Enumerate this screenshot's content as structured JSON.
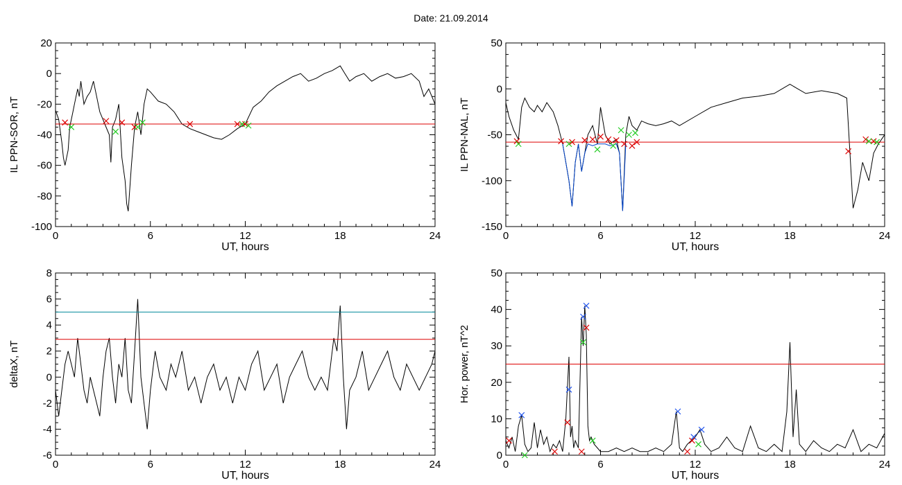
{
  "figure": {
    "title": "Date:  21.09.2014"
  },
  "colors": {
    "signal": "#000000",
    "threshold": "#dd0000",
    "blue_line": "#0044cc",
    "upper_threshold": "#008899",
    "green_marker": "#22cc22",
    "red_marker": "#dd0000",
    "blue_marker": "#2255ee"
  },
  "chart_data": [
    {
      "type": "line",
      "id": "sor",
      "xlabel": "UT, hours",
      "ylabel": "IL PPN-SOR, nT",
      "xlim": [
        0,
        24
      ],
      "ylim": [
        -100,
        20
      ],
      "xticks": [
        0,
        6,
        12,
        18,
        24
      ],
      "yticks": [
        -100,
        -80,
        -60,
        -40,
        -20,
        0,
        20
      ],
      "series": [
        {
          "style": "signal",
          "x": [
            0,
            0.2,
            0.4,
            0.5,
            0.6,
            0.8,
            0.9,
            1.1,
            1.2,
            1.4,
            1.5,
            1.6,
            1.8,
            2.0,
            2.2,
            2.4,
            2.6,
            2.8,
            3.0,
            3.2,
            3.4,
            3.5,
            3.6,
            3.8,
            4.0,
            4.2,
            4.4,
            4.5,
            4.6,
            4.8,
            5.0,
            5.2,
            5.4,
            5.6,
            5.8,
            6.0,
            6.5,
            7.0,
            7.5,
            8.0,
            8.5,
            9.0,
            9.5,
            10.0,
            10.5,
            11.0,
            11.5,
            12.0,
            12.5,
            13.0,
            13.5,
            14.0,
            14.5,
            15.0,
            15.5,
            16.0,
            16.5,
            17.0,
            17.5,
            18.0,
            18.3,
            18.6,
            19.0,
            19.5,
            20.0,
            20.5,
            21.0,
            21.5,
            22.0,
            22.5,
            23.0,
            23.3,
            23.6,
            24.0
          ],
          "y": [
            -24,
            -30,
            -45,
            -55,
            -60,
            -50,
            -35,
            -25,
            -20,
            -10,
            -15,
            -5,
            -20,
            -15,
            -12,
            -5,
            -15,
            -25,
            -30,
            -35,
            -40,
            -58,
            -35,
            -30,
            -20,
            -55,
            -70,
            -85,
            -90,
            -60,
            -35,
            -25,
            -40,
            -20,
            -10,
            -12,
            -18,
            -20,
            -25,
            -33,
            -36,
            -38,
            -40,
            -42,
            -43,
            -40,
            -36,
            -33,
            -22,
            -18,
            -12,
            -8,
            -5,
            -2,
            0,
            -5,
            -3,
            0,
            2,
            5,
            0,
            -5,
            -2,
            0,
            -5,
            -2,
            0,
            -3,
            -2,
            0,
            -5,
            -15,
            -10,
            -20
          ]
        }
      ],
      "thresholds": [
        {
          "value": -33,
          "style": "threshold"
        }
      ],
      "markers": [
        {
          "style": "red_marker",
          "x": [
            0.6,
            3.2,
            4.2,
            5.0,
            8.5,
            11.5,
            12.0
          ],
          "y": [
            -32,
            -31,
            -32,
            -35,
            -33,
            -33,
            -33
          ]
        },
        {
          "style": "green_marker",
          "x": [
            1.0,
            3.8,
            5.2,
            5.5,
            11.8,
            12.2
          ],
          "y": [
            -35,
            -38,
            -35,
            -32,
            -33,
            -34
          ]
        }
      ]
    },
    {
      "type": "line",
      "id": "nal",
      "xlabel": "UT, hours",
      "ylabel": "IL PPN-NAL, nT",
      "xlim": [
        0,
        24
      ],
      "ylim": [
        -150,
        50
      ],
      "xticks": [
        0,
        6,
        12,
        18,
        24
      ],
      "yticks": [
        -150,
        -100,
        -50,
        0,
        50
      ],
      "series": [
        {
          "style": "signal",
          "x": [
            0,
            0.2,
            0.5,
            0.8,
            1.0,
            1.2,
            1.5,
            1.8,
            2.0,
            2.3,
            2.6,
            3.0,
            3.3,
            3.6,
            3.8,
            4.0,
            4.2,
            4.4,
            4.6,
            4.8,
            5.0,
            5.2,
            5.5,
            5.8,
            6.0,
            6.3,
            6.6,
            7.0,
            7.2,
            7.4,
            7.6,
            7.8,
            8.0,
            8.3,
            8.6,
            9.0,
            9.5,
            10.0,
            10.5,
            11.0,
            12.0,
            13.0,
            14.0,
            15.0,
            16.0,
            17.0,
            18.0,
            18.5,
            19.0,
            20.0,
            21.0,
            21.6,
            21.8,
            22.0,
            22.3,
            22.6,
            23.0,
            23.3,
            23.6,
            24.0
          ],
          "y": [
            -15,
            -30,
            -45,
            -55,
            -20,
            -10,
            -20,
            -25,
            -18,
            -25,
            -15,
            -25,
            -40,
            -60,
            -80,
            -100,
            -128,
            -80,
            -60,
            -90,
            -70,
            -50,
            -40,
            -60,
            -20,
            -50,
            -60,
            -55,
            -70,
            -133,
            -50,
            -30,
            -40,
            -45,
            -35,
            -38,
            -40,
            -38,
            -35,
            -40,
            -30,
            -20,
            -15,
            -10,
            -8,
            -5,
            5,
            0,
            -5,
            -2,
            -5,
            -10,
            -70,
            -130,
            -110,
            -80,
            -100,
            -70,
            -60,
            -50
          ]
        },
        {
          "style": "blue_line",
          "x": [
            3.6,
            3.8,
            4.0,
            4.2,
            4.4,
            4.6,
            4.8,
            5.0,
            5.2,
            5.5,
            5.8,
            6.3,
            6.6,
            7.0,
            7.2,
            7.4,
            7.6
          ],
          "y": [
            -60,
            -80,
            -100,
            -128,
            -80,
            -60,
            -90,
            -70,
            -60,
            -62,
            -60,
            -60,
            -62,
            -60,
            -70,
            -133,
            -60
          ]
        }
      ],
      "thresholds": [
        {
          "value": -58,
          "style": "threshold"
        }
      ],
      "markers": [
        {
          "style": "red_marker",
          "x": [
            0.7,
            3.5,
            4.2,
            5.0,
            5.5,
            6.0,
            6.5,
            7.0,
            7.5,
            8.0,
            8.3,
            21.7,
            22.8,
            23.3
          ],
          "y": [
            -57,
            -57,
            -58,
            -56,
            -55,
            -52,
            -55,
            -56,
            -60,
            -62,
            -58,
            -68,
            -55,
            -57
          ]
        },
        {
          "style": "green_marker",
          "x": [
            0.8,
            4.0,
            5.8,
            6.8,
            7.3,
            7.8,
            8.2,
            23.0,
            23.5
          ],
          "y": [
            -60,
            -60,
            -66,
            -62,
            -45,
            -50,
            -48,
            -57,
            -58
          ]
        }
      ]
    },
    {
      "type": "line",
      "id": "deltax",
      "xlabel": "UT, hours",
      "ylabel": "deltaX, nT",
      "xlim": [
        0,
        24
      ],
      "ylim": [
        -6,
        8
      ],
      "xticks": [
        0,
        6,
        12,
        18,
        24
      ],
      "yticks": [
        -6,
        -4,
        -2,
        0,
        2,
        4,
        6,
        8
      ],
      "series": [
        {
          "style": "signal",
          "x": [
            0,
            0.2,
            0.4,
            0.6,
            0.8,
            1.0,
            1.2,
            1.4,
            1.6,
            1.8,
            2.0,
            2.2,
            2.4,
            2.6,
            2.8,
            3.0,
            3.2,
            3.4,
            3.6,
            3.8,
            4.0,
            4.2,
            4.4,
            4.6,
            4.8,
            5.0,
            5.2,
            5.4,
            5.6,
            5.8,
            6.0,
            6.3,
            6.6,
            7.0,
            7.3,
            7.6,
            8.0,
            8.4,
            8.8,
            9.2,
            9.6,
            10.0,
            10.4,
            10.8,
            11.2,
            11.6,
            12.0,
            12.4,
            12.8,
            13.2,
            13.6,
            14.0,
            14.4,
            14.8,
            15.2,
            15.6,
            16.0,
            16.4,
            16.8,
            17.2,
            17.6,
            17.8,
            18.0,
            18.2,
            18.4,
            18.6,
            19.0,
            19.4,
            19.8,
            20.2,
            20.6,
            21.0,
            21.4,
            21.8,
            22.2,
            22.6,
            23.0,
            23.4,
            23.8,
            24.0
          ],
          "y": [
            -1,
            -3,
            -1,
            1,
            2,
            1,
            0,
            3,
            1,
            -1,
            -2,
            0,
            -1,
            -2,
            -3,
            0,
            2,
            3,
            0,
            -2,
            1,
            0,
            3,
            -1,
            -2,
            2,
            6,
            0,
            -2,
            -4,
            -1,
            2,
            0,
            -1,
            1,
            0,
            2,
            -1,
            0,
            -2,
            0,
            1,
            -1,
            0,
            -2,
            0,
            -1,
            1,
            2,
            -1,
            0,
            1,
            -2,
            0,
            1,
            2,
            0,
            -1,
            0,
            -1,
            3,
            2,
            5.5,
            0,
            -4,
            -1,
            0,
            2,
            -1,
            0,
            1,
            2,
            0,
            -1,
            1,
            0,
            -1,
            0,
            1,
            2
          ]
        }
      ],
      "thresholds": [
        {
          "value": 2.9,
          "style": "threshold"
        },
        {
          "value": 5,
          "style": "upper_threshold"
        }
      ],
      "markers": []
    },
    {
      "type": "line",
      "id": "power",
      "xlabel": "UT, hours",
      "ylabel": "Hor. power, nT^2",
      "xlim": [
        0,
        24
      ],
      "ylim": [
        0,
        50
      ],
      "xticks": [
        0,
        6,
        12,
        18,
        24
      ],
      "yticks": [
        0,
        10,
        20,
        30,
        40,
        50
      ],
      "series": [
        {
          "style": "signal",
          "x": [
            0,
            0.2,
            0.4,
            0.6,
            0.8,
            1.0,
            1.2,
            1.4,
            1.6,
            1.8,
            2.0,
            2.2,
            2.4,
            2.6,
            2.8,
            3.0,
            3.2,
            3.4,
            3.6,
            3.8,
            4.0,
            4.1,
            4.2,
            4.3,
            4.4,
            4.6,
            4.8,
            4.9,
            5.0,
            5.1,
            5.2,
            5.3,
            5.4,
            5.6,
            5.8,
            6.0,
            6.5,
            7.0,
            7.5,
            8.0,
            8.5,
            9.0,
            9.5,
            10.0,
            10.5,
            10.8,
            11.0,
            11.2,
            11.5,
            12.0,
            12.3,
            12.6,
            13.0,
            13.5,
            14.0,
            14.5,
            15.0,
            15.5,
            16.0,
            16.5,
            17.0,
            17.5,
            17.8,
            18.0,
            18.2,
            18.4,
            18.6,
            19.0,
            19.5,
            20.0,
            20.5,
            21.0,
            21.5,
            22.0,
            22.5,
            23.0,
            23.5,
            24.0
          ],
          "y": [
            4,
            2,
            5,
            1,
            8,
            11,
            3,
            1,
            2,
            9,
            2,
            7,
            3,
            5,
            1,
            3,
            2,
            4,
            1,
            10,
            27,
            5,
            8,
            2,
            4,
            2,
            38,
            30,
            41,
            33,
            8,
            4,
            5,
            3,
            2,
            1,
            1,
            2,
            1,
            2,
            1,
            1,
            2,
            1,
            3,
            12,
            2,
            1,
            3,
            5,
            7,
            3,
            1,
            2,
            5,
            2,
            1,
            8,
            2,
            1,
            3,
            1,
            12,
            31,
            5,
            18,
            3,
            1,
            4,
            2,
            1,
            3,
            2,
            7,
            1,
            3,
            2,
            6
          ]
        }
      ],
      "thresholds": [
        {
          "value": 25,
          "style": "threshold"
        }
      ],
      "markers": [
        {
          "style": "blue_marker",
          "x": [
            1.0,
            4.0,
            4.9,
            5.1,
            10.9,
            11.9,
            12.4
          ],
          "y": [
            11,
            18,
            38,
            41,
            12,
            5,
            7
          ]
        },
        {
          "style": "red_marker",
          "x": [
            0.2,
            3.1,
            3.9,
            4.8,
            5.1,
            11.5,
            11.8
          ],
          "y": [
            4,
            1,
            9,
            1,
            35,
            1,
            4
          ]
        },
        {
          "style": "green_marker",
          "x": [
            1.2,
            4.9,
            5.5,
            12.2
          ],
          "y": [
            0,
            31,
            4,
            3
          ]
        }
      ]
    }
  ]
}
